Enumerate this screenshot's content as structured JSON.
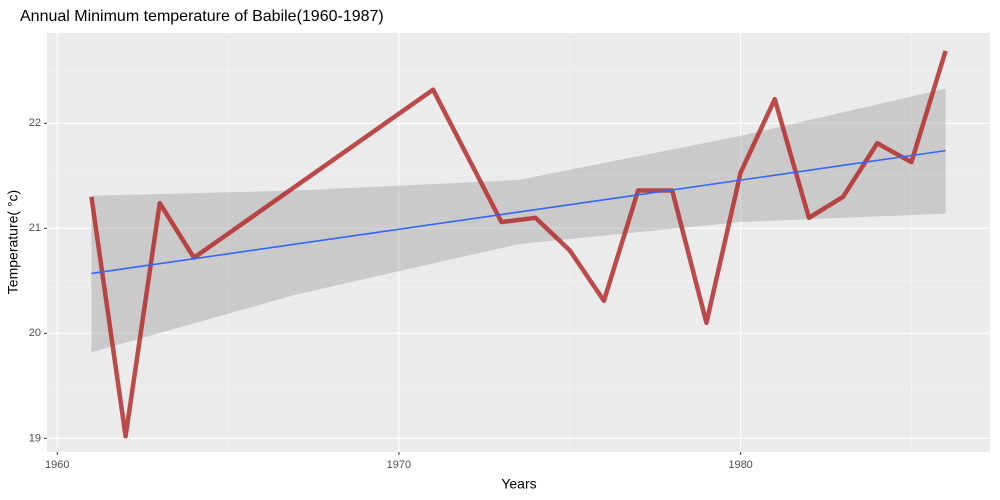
{
  "chart_data": {
    "type": "line",
    "title": "Annual Minimum temperature of Babile(1960-1987)",
    "x_label": "Years",
    "y_label": "Temperature( °c)",
    "series": [
      {
        "name": "Minimum temperature",
        "color": "#b22222",
        "x": [
          1961,
          1962,
          1963,
          1964,
          1971,
          1973,
          1974,
          1975,
          1976,
          1977,
          1978,
          1979,
          1980,
          1981,
          1982,
          1983,
          1984,
          1985,
          1986
        ],
        "values": [
          21.3,
          19.02,
          21.24,
          20.72,
          22.32,
          21.06,
          21.1,
          20.79,
          20.31,
          21.36,
          21.36,
          20.1,
          21.53,
          22.23,
          21.1,
          21.3,
          21.81,
          21.63,
          22.69
        ]
      }
    ],
    "trend": {
      "color": "#3366ff",
      "x": [
        1961,
        1986
      ],
      "values": [
        20.57,
        21.74
      ]
    },
    "band": {
      "color": "#999999",
      "x": [
        1961,
        1967,
        1973.5,
        1980,
        1986
      ],
      "lower": [
        19.82,
        20.37,
        20.85,
        21.06,
        21.14
      ],
      "upper": [
        21.31,
        21.36,
        21.46,
        21.88,
        22.33
      ]
    },
    "xlim": [
      1959.7,
      1987.3
    ],
    "xticks": [
      1960,
      1970,
      1980
    ],
    "ylim": [
      18.87,
      22.86
    ],
    "yticks": [
      19,
      20,
      21,
      22
    ],
    "grid": true,
    "minor_grid": true
  }
}
